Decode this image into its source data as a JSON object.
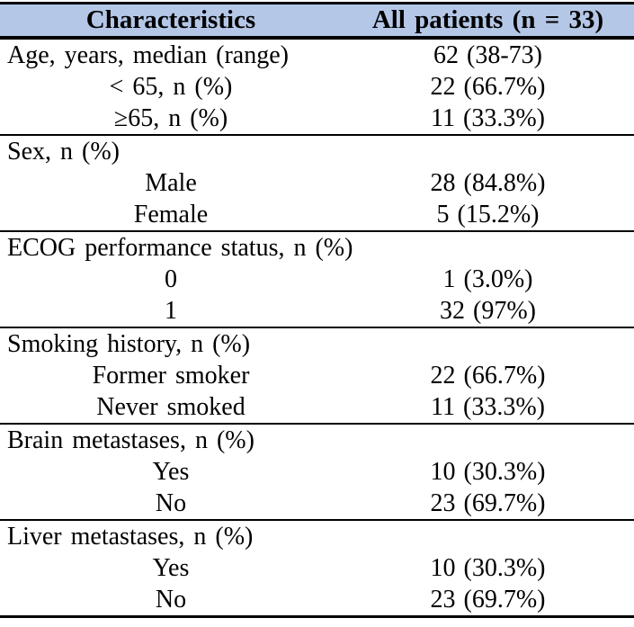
{
  "colors": {
    "header_bg": "#b4c7e7",
    "rule": "#000000",
    "text": "#000000"
  },
  "table": {
    "header": {
      "col1": "Characteristics",
      "col2": "All patients (n = 33)"
    },
    "sections": [
      {
        "rows": [
          {
            "label": "Age, years, median (range)",
            "value": "62 (38-73)",
            "indent": false
          },
          {
            "label": "< 65, n (%)",
            "value": "22 (66.7%)",
            "indent": true
          },
          {
            "label": "≥65, n (%)",
            "value": "11 (33.3%)",
            "indent": true
          }
        ]
      },
      {
        "rows": [
          {
            "label": "Sex, n (%)",
            "value": "",
            "indent": false
          },
          {
            "label": "Male",
            "value": "28 (84.8%)",
            "indent": true
          },
          {
            "label": "Female",
            "value": "5 (15.2%)",
            "indent": true
          }
        ]
      },
      {
        "rows": [
          {
            "label": "ECOG performance status, n (%)",
            "value": "",
            "indent": false
          },
          {
            "label": "0",
            "value": "1 (3.0%)",
            "indent": true
          },
          {
            "label": "1",
            "value": "32 (97%)",
            "indent": true
          }
        ]
      },
      {
        "rows": [
          {
            "label": "Smoking history, n (%)",
            "value": "",
            "indent": false
          },
          {
            "label": "Former smoker",
            "value": "22 (66.7%)",
            "indent": true
          },
          {
            "label": "Never smoked",
            "value": "11 (33.3%)",
            "indent": true
          }
        ]
      },
      {
        "rows": [
          {
            "label": "Brain metastases, n (%)",
            "value": "",
            "indent": false
          },
          {
            "label": "Yes",
            "value": "10 (30.3%)",
            "indent": true
          },
          {
            "label": "No",
            "value": "23 (69.7%)",
            "indent": true
          }
        ]
      },
      {
        "rows": [
          {
            "label": "Liver metastases, n (%)",
            "value": "",
            "indent": false
          },
          {
            "label": "Yes",
            "value": "10 (30.3%)",
            "indent": true
          },
          {
            "label": "No",
            "value": "23 (69.7%)",
            "indent": true
          }
        ]
      }
    ]
  }
}
